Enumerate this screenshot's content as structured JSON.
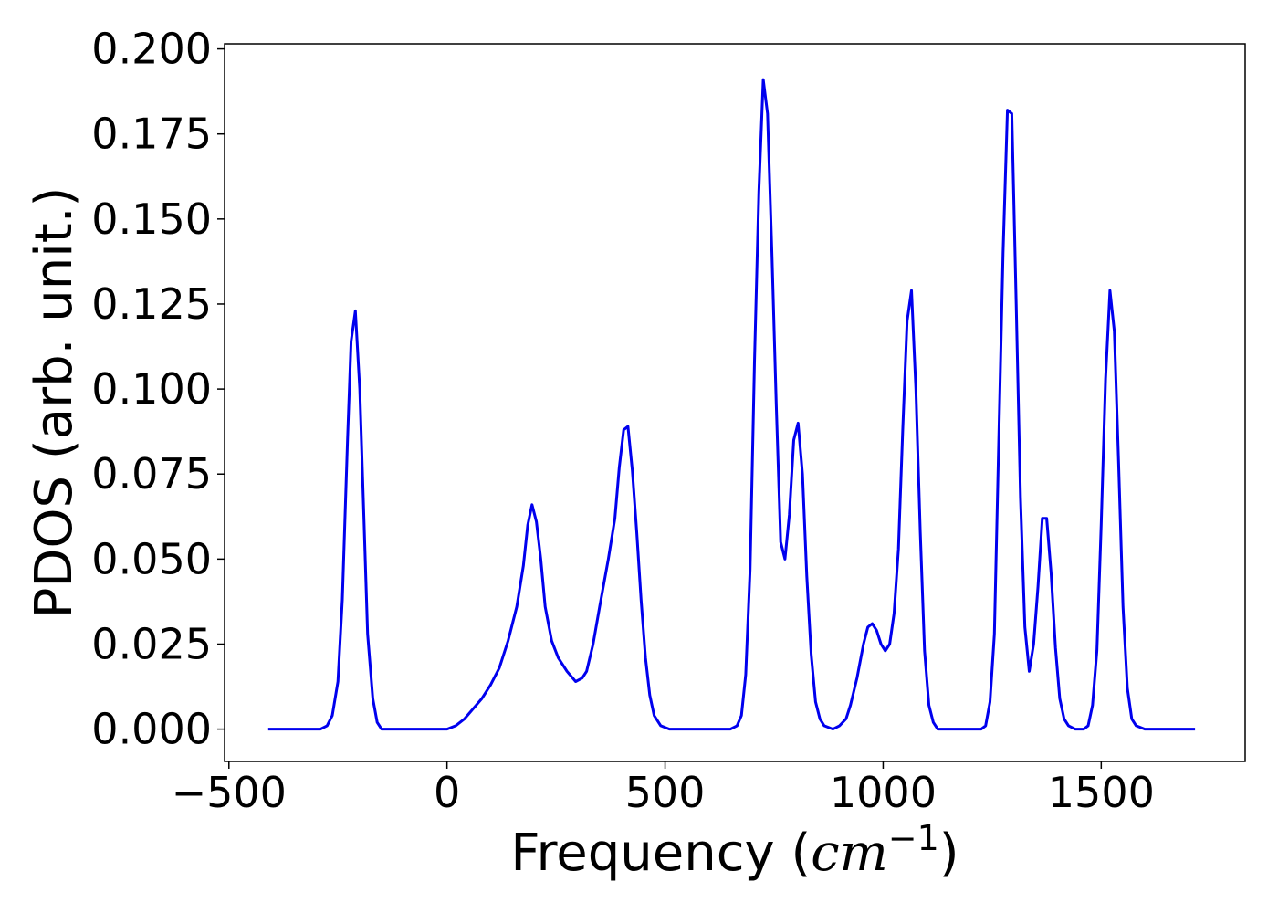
{
  "chart_data": {
    "type": "line",
    "title": "",
    "xlabel_prefix": "Frequency (",
    "xlabel_math": "cm",
    "xlabel_exponent": "−1",
    "xlabel_suffix": ")",
    "ylabel": "PDOS (arb. unit.)",
    "xlim": [
      -510,
      1830
    ],
    "ylim": [
      -0.0095,
      0.2015
    ],
    "x_ticks": [
      {
        "value": -500,
        "label": "−500"
      },
      {
        "value": 0,
        "label": "0"
      },
      {
        "value": 500,
        "label": "500"
      },
      {
        "value": 1000,
        "label": "1000"
      },
      {
        "value": 1500,
        "label": "1500"
      }
    ],
    "y_ticks": [
      {
        "value": 0.0,
        "label": "0.000"
      },
      {
        "value": 0.025,
        "label": "0.025"
      },
      {
        "value": 0.05,
        "label": "0.050"
      },
      {
        "value": 0.075,
        "label": "0.075"
      },
      {
        "value": 0.1,
        "label": "0.100"
      },
      {
        "value": 0.125,
        "label": "0.125"
      },
      {
        "value": 0.15,
        "label": "0.150"
      },
      {
        "value": 0.175,
        "label": "0.175"
      },
      {
        "value": 0.2,
        "label": "0.200"
      }
    ],
    "grid": false,
    "legend": "none",
    "series": [
      {
        "color": "#0000ee",
        "points": [
          [
            -410,
            0.0
          ],
          [
            -290,
            0.0
          ],
          [
            -275,
            0.001
          ],
          [
            -263,
            0.004
          ],
          [
            -250,
            0.014
          ],
          [
            -240,
            0.038
          ],
          [
            -228,
            0.085
          ],
          [
            -220,
            0.114
          ],
          [
            -210,
            0.123
          ],
          [
            -200,
            0.1
          ],
          [
            -190,
            0.06
          ],
          [
            -182,
            0.028
          ],
          [
            -170,
            0.009
          ],
          [
            -160,
            0.002
          ],
          [
            -150,
            0.0
          ],
          [
            -100,
            0.0
          ],
          [
            0,
            0.0
          ],
          [
            20,
            0.001
          ],
          [
            40,
            0.003
          ],
          [
            60,
            0.006
          ],
          [
            80,
            0.009
          ],
          [
            100,
            0.013
          ],
          [
            120,
            0.018
          ],
          [
            140,
            0.026
          ],
          [
            160,
            0.036
          ],
          [
            175,
            0.048
          ],
          [
            185,
            0.06
          ],
          [
            195,
            0.066
          ],
          [
            205,
            0.061
          ],
          [
            215,
            0.05
          ],
          [
            225,
            0.036
          ],
          [
            240,
            0.026
          ],
          [
            255,
            0.021
          ],
          [
            275,
            0.017
          ],
          [
            295,
            0.014
          ],
          [
            310,
            0.015
          ],
          [
            320,
            0.017
          ],
          [
            335,
            0.025
          ],
          [
            350,
            0.036
          ],
          [
            370,
            0.05
          ],
          [
            385,
            0.062
          ],
          [
            395,
            0.077
          ],
          [
            405,
            0.088
          ],
          [
            415,
            0.089
          ],
          [
            425,
            0.076
          ],
          [
            435,
            0.058
          ],
          [
            445,
            0.038
          ],
          [
            455,
            0.021
          ],
          [
            465,
            0.01
          ],
          [
            475,
            0.004
          ],
          [
            490,
            0.001
          ],
          [
            510,
            0.0
          ],
          [
            600,
            0.0
          ],
          [
            650,
            0.0
          ],
          [
            665,
            0.001
          ],
          [
            675,
            0.004
          ],
          [
            685,
            0.016
          ],
          [
            695,
            0.047
          ],
          [
            705,
            0.108
          ],
          [
            715,
            0.158
          ],
          [
            725,
            0.191
          ],
          [
            735,
            0.181
          ],
          [
            745,
            0.14
          ],
          [
            755,
            0.095
          ],
          [
            765,
            0.055
          ],
          [
            775,
            0.05
          ],
          [
            785,
            0.063
          ],
          [
            795,
            0.085
          ],
          [
            805,
            0.09
          ],
          [
            815,
            0.075
          ],
          [
            825,
            0.045
          ],
          [
            835,
            0.022
          ],
          [
            845,
            0.008
          ],
          [
            855,
            0.003
          ],
          [
            865,
            0.001
          ],
          [
            885,
            0.0
          ],
          [
            900,
            0.001
          ],
          [
            915,
            0.003
          ],
          [
            925,
            0.007
          ],
          [
            940,
            0.015
          ],
          [
            955,
            0.025
          ],
          [
            965,
            0.03
          ],
          [
            975,
            0.031
          ],
          [
            985,
            0.029
          ],
          [
            995,
            0.025
          ],
          [
            1005,
            0.023
          ],
          [
            1015,
            0.025
          ],
          [
            1025,
            0.034
          ],
          [
            1035,
            0.053
          ],
          [
            1045,
            0.088
          ],
          [
            1055,
            0.12
          ],
          [
            1065,
            0.129
          ],
          [
            1075,
            0.1
          ],
          [
            1085,
            0.058
          ],
          [
            1095,
            0.023
          ],
          [
            1105,
            0.007
          ],
          [
            1115,
            0.002
          ],
          [
            1125,
            0.0
          ],
          [
            1200,
            0.0
          ],
          [
            1225,
            0.0
          ],
          [
            1235,
            0.001
          ],
          [
            1245,
            0.008
          ],
          [
            1255,
            0.028
          ],
          [
            1265,
            0.085
          ],
          [
            1275,
            0.14
          ],
          [
            1285,
            0.182
          ],
          [
            1295,
            0.181
          ],
          [
            1305,
            0.125
          ],
          [
            1315,
            0.068
          ],
          [
            1325,
            0.03
          ],
          [
            1335,
            0.017
          ],
          [
            1345,
            0.025
          ],
          [
            1355,
            0.042
          ],
          [
            1365,
            0.062
          ],
          [
            1375,
            0.062
          ],
          [
            1385,
            0.046
          ],
          [
            1395,
            0.024
          ],
          [
            1405,
            0.009
          ],
          [
            1415,
            0.003
          ],
          [
            1425,
            0.001
          ],
          [
            1440,
            0.0
          ],
          [
            1460,
            0.0
          ],
          [
            1470,
            0.001
          ],
          [
            1480,
            0.007
          ],
          [
            1490,
            0.023
          ],
          [
            1500,
            0.06
          ],
          [
            1510,
            0.103
          ],
          [
            1520,
            0.129
          ],
          [
            1530,
            0.117
          ],
          [
            1540,
            0.078
          ],
          [
            1550,
            0.036
          ],
          [
            1560,
            0.012
          ],
          [
            1570,
            0.003
          ],
          [
            1580,
            0.001
          ],
          [
            1600,
            0.0
          ],
          [
            1700,
            0.0
          ],
          [
            1715,
            0.0
          ]
        ]
      }
    ]
  }
}
